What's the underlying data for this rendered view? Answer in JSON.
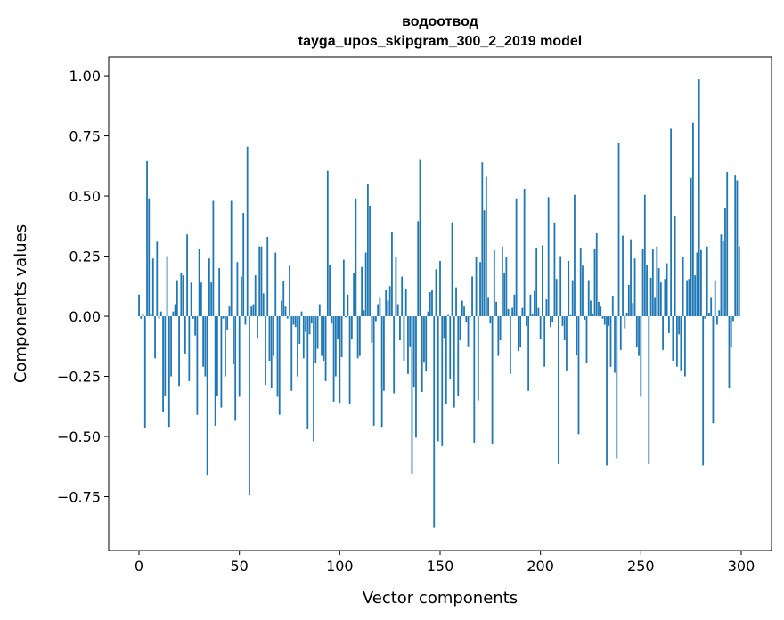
{
  "chart_data": {
    "type": "bar",
    "title": [
      "водоотвод",
      "tayga_upos_skipgram_300_2_2019 model"
    ],
    "xlabel": "Vector components",
    "ylabel": "Components values",
    "xlim": [
      -15.1,
      315.1
    ],
    "ylim": [
      -0.974,
      1.078
    ],
    "xticks": [
      0,
      50,
      100,
      150,
      200,
      250,
      300
    ],
    "xtick_labels": [
      "0",
      "50",
      "100",
      "150",
      "200",
      "250",
      "300"
    ],
    "yticks": [
      -0.75,
      -0.5,
      -0.25,
      0,
      0.25,
      0.5,
      0.75,
      1.0
    ],
    "ytick_labels": [
      "−0.75",
      "−0.50",
      "−0.25",
      "0.00",
      "0.25",
      "0.50",
      "0.75",
      "1.00"
    ],
    "grid": false,
    "color": "#1f77b4",
    "values": [
      0.09,
      -0.01,
      0.01,
      -0.465,
      0.645,
      0.49,
      0.01,
      0.24,
      -0.175,
      0.31,
      -0.01,
      0.02,
      -0.4,
      -0.33,
      0.25,
      -0.46,
      -0.25,
      0.02,
      0.05,
      0.15,
      -0.29,
      0.18,
      0.17,
      -0.155,
      0.34,
      -0.27,
      0.14,
      -0.01,
      -0.08,
      -0.41,
      0.28,
      0.14,
      -0.21,
      -0.25,
      -0.66,
      0.24,
      0.14,
      0.48,
      -0.455,
      -0.33,
      0.2,
      -0.38,
      -0.01,
      -0.25,
      -0.055,
      0.04,
      0.48,
      -0.2,
      -0.435,
      0.225,
      -0.335,
      0.165,
      0.43,
      -0.035,
      0.705,
      -0.745,
      0.04,
      0.05,
      0.17,
      -0.09,
      0.29,
      0.29,
      0.095,
      -0.285,
      0.33,
      -0.185,
      -0.3,
      -0.165,
      0.265,
      -0.335,
      -0.41,
      0.065,
      0.145,
      0.04,
      -0.01,
      0.21,
      -0.31,
      -0.035,
      -0.045,
      -0.25,
      -0.115,
      0.02,
      -0.175,
      -0.065,
      -0.47,
      -0.075,
      -0.03,
      -0.52,
      -0.195,
      -0.135,
      0.05,
      -0.165,
      -0.185,
      -0.27,
      0.605,
      0.215,
      -0.03,
      -0.355,
      -0.25,
      -0.095,
      -0.36,
      -0.17,
      0.235,
      -0.005,
      0.09,
      -0.365,
      -0.095,
      0.18,
      0.49,
      -0.175,
      -0.165,
      0.205,
      0.025,
      0.265,
      0.55,
      0.46,
      -0.11,
      -0.455,
      -0.02,
      0.05,
      0.08,
      -0.46,
      -0.31,
      0.11,
      0.065,
      0.125,
      0.35,
      -0.32,
      0.245,
      0.05,
      -0.1,
      0.165,
      -0.185,
      0.115,
      -0.24,
      -0.125,
      -0.655,
      -0.295,
      -0.505,
      0.395,
      0.65,
      -0.315,
      -0.19,
      -0.23,
      0.02,
      0.1,
      0.11,
      -0.88,
      0.195,
      -0.52,
      0.23,
      -0.54,
      -0.09,
      -0.365,
      0.005,
      -0.26,
      0.39,
      -0.38,
      0.12,
      -0.33,
      -0.1,
      0.065,
      0.04,
      -0.025,
      -0.125,
      -0.005,
      0.165,
      -0.525,
      0.245,
      -0.35,
      0.225,
      0.64,
      0.44,
      0.58,
      0.08,
      -0.03,
      -0.53,
      0.275,
      0.06,
      -0.165,
      -0.1,
      0.29,
      0.18,
      0.245,
      0.03,
      -0.24,
      0.035,
      0.09,
      0.49,
      -0.145,
      -0.13,
      0.035,
      0.53,
      -0.04,
      -0.31,
      0.09,
      0.01,
      0.105,
      0.285,
      0.035,
      -0.095,
      0.295,
      -0.21,
      0.07,
      0.495,
      -0.045,
      -0.025,
      0.39,
      0.155,
      -0.615,
      0.25,
      -0.04,
      -0.1,
      -0.225,
      0.23,
      0.005,
      0.15,
      0.505,
      -0.16,
      -0.49,
      0.285,
      0.21,
      -0.015,
      -0.195,
      0.15,
      0.065,
      0.01,
      0.28,
      0.345,
      0.06,
      0.04,
      -0.01,
      -0.035,
      -0.62,
      -0.04,
      -0.21,
      0.085,
      -0.235,
      -0.59,
      0.72,
      -0.14,
      0.335,
      -0.05,
      0.015,
      0.13,
      0.32,
      0.055,
      0.24,
      -0.13,
      -0.165,
      -0.335,
      0.28,
      0.505,
      0.215,
      -0.615,
      0.16,
      0.28,
      0.08,
      0.29,
      0.2,
      0.14,
      -0.14,
      0.155,
      0.22,
      -0.07,
      0.78,
      -0.185,
      0.415,
      -0.21,
      -0.075,
      -0.225,
      0.245,
      -0.25,
      0.15,
      0.155,
      0.575,
      0.805,
      0.17,
      0.265,
      0.985,
      0.275,
      -0.62,
      -0.01,
      0.29,
      0.015,
      0.08,
      -0.445,
      0.15,
      -0.035,
      0.025,
      0.34,
      0.315,
      0.45,
      0.6,
      -0.3,
      -0.13,
      -0.02,
      0.585,
      0.565,
      0.29
    ]
  }
}
